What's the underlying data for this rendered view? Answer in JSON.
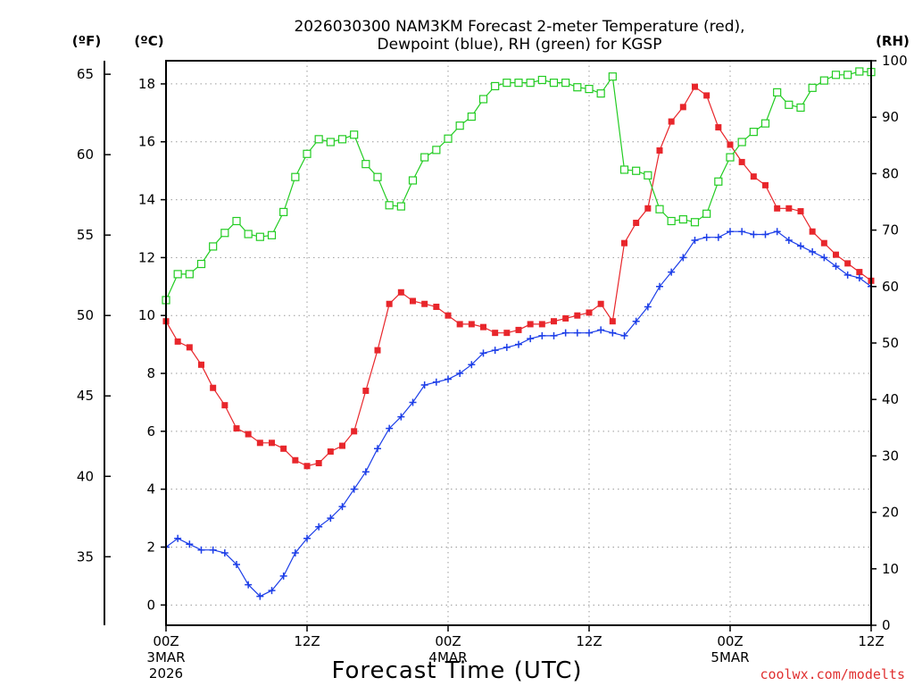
{
  "chart_data": {
    "type": "line",
    "title_line1": "2026030300 NAM3KM Forecast 2-meter Temperature (red),",
    "title_line2": "Dewpoint (blue), RH (green) for KGSP",
    "xlabel": "Forecast Time (UTC)",
    "credit": "coolwx.com/modelts",
    "units": {
      "fahrenheit": "(ºF)",
      "celsius": "(ºC)",
      "rh": "(RH)"
    },
    "x_range_hours": [
      0,
      60
    ],
    "celsius_range": [
      -0.7,
      18.8
    ],
    "rh_range": [
      0,
      100
    ],
    "fahrenheit_ticks": [
      "35",
      "40",
      "45",
      "50",
      "55",
      "60",
      "65"
    ],
    "celsius_ticks": [
      "0",
      "2",
      "4",
      "6",
      "8",
      "10",
      "12",
      "14",
      "16",
      "18"
    ],
    "rh_ticks": [
      "0",
      "10",
      "20",
      "30",
      "40",
      "50",
      "60",
      "70",
      "80",
      "90",
      "100"
    ],
    "x_ticks": [
      {
        "hour": 0,
        "label": "00Z",
        "sub1": "3MAR",
        "sub2": "2026"
      },
      {
        "hour": 12,
        "label": "12Z",
        "sub1": "",
        "sub2": ""
      },
      {
        "hour": 24,
        "label": "00Z",
        "sub1": "4MAR",
        "sub2": ""
      },
      {
        "hour": 36,
        "label": "12Z",
        "sub1": "",
        "sub2": ""
      },
      {
        "hour": 48,
        "label": "00Z",
        "sub1": "5MAR",
        "sub2": ""
      },
      {
        "hour": 60,
        "label": "12Z",
        "sub1": "",
        "sub2": ""
      }
    ],
    "series": [
      {
        "name": "2-meter Temperature",
        "unit": "C",
        "color": "#e8262b",
        "marker": "filled-square",
        "values": [
          9.8,
          9.1,
          8.9,
          8.3,
          7.5,
          6.9,
          6.1,
          5.9,
          5.6,
          5.6,
          5.4,
          5.0,
          4.8,
          4.9,
          5.3,
          5.5,
          6.0,
          7.4,
          8.8,
          10.4,
          10.8,
          10.5,
          10.4,
          10.3,
          10.0,
          9.7,
          9.7,
          9.6,
          9.4,
          9.4,
          9.5,
          9.7,
          9.7,
          9.8,
          9.9,
          10.0,
          10.1,
          10.4,
          9.8,
          12.5,
          13.2,
          13.7,
          15.7,
          16.7,
          17.2,
          17.9,
          17.6,
          16.5,
          15.9,
          15.3,
          14.8,
          14.5,
          13.7,
          13.7,
          13.6,
          12.9,
          12.5,
          12.1,
          11.8,
          11.5,
          11.2
        ]
      },
      {
        "name": "Dewpoint",
        "unit": "C",
        "color": "#1c3ee8",
        "marker": "plus",
        "values": [
          2.0,
          2.3,
          2.1,
          1.9,
          1.9,
          1.8,
          1.4,
          0.7,
          0.3,
          0.5,
          1.0,
          1.8,
          2.3,
          2.7,
          3.0,
          3.4,
          4.0,
          4.6,
          5.4,
          6.1,
          6.5,
          7.0,
          7.6,
          7.7,
          7.8,
          8.0,
          8.3,
          8.7,
          8.8,
          8.9,
          9.0,
          9.2,
          9.3,
          9.3,
          9.4,
          9.4,
          9.4,
          9.5,
          9.4,
          9.3,
          9.8,
          10.3,
          11.0,
          11.5,
          12.0,
          12.6,
          12.7,
          12.7,
          12.9,
          12.9,
          12.8,
          12.8,
          12.9,
          12.6,
          12.4,
          12.2,
          12.0,
          11.7,
          11.4,
          11.3,
          11.0
        ]
      },
      {
        "name": "RH",
        "unit": "%",
        "color": "#22cc22",
        "marker": "open-square",
        "values": [
          57.6,
          62.2,
          62.2,
          64.0,
          67.1,
          69.5,
          71.6,
          69.3,
          68.8,
          69.1,
          73.2,
          79.4,
          83.5,
          86.1,
          85.6,
          86.1,
          86.9,
          81.7,
          79.4,
          74.4,
          74.2,
          78.8,
          82.9,
          84.2,
          86.2,
          88.5,
          90.1,
          93.2,
          95.5,
          96.1,
          96.1,
          96.1,
          96.6,
          96.1,
          96.1,
          95.3,
          95.0,
          94.2,
          97.2,
          80.7,
          80.5,
          79.7,
          73.7,
          71.6,
          71.9,
          71.4,
          72.9,
          78.6,
          82.9,
          85.6,
          87.4,
          88.9,
          94.4,
          92.2,
          91.7,
          95.2,
          96.5,
          97.5,
          97.5,
          98.1,
          98.0
        ]
      }
    ]
  }
}
